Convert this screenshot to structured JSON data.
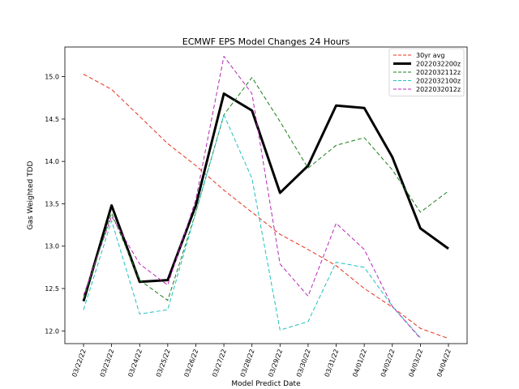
{
  "chart_data": {
    "type": "line",
    "title": "ECMWF EPS Model Changes 24 Hours",
    "xlabel": "Model Predict Date",
    "ylabel": "Gas Weighted TDD",
    "ylim": [
      11.85,
      15.35
    ],
    "yticks": [
      "12.0",
      "12.5",
      "13.0",
      "13.5",
      "14.0",
      "14.5",
      "15.0"
    ],
    "legend_position": "top-right",
    "categories": [
      "03/22/22",
      "03/23/22",
      "03/24/22",
      "03/25/22",
      "03/26/22",
      "03/27/22",
      "03/28/22",
      "03/29/22",
      "03/30/22",
      "03/31/22",
      "04/01/22",
      "04/02/22",
      "04/03/22",
      "04/04/22"
    ],
    "series": [
      {
        "name": "30yr avg",
        "color": "#e8301c",
        "style": "dashed",
        "width": "thin",
        "values": [
          15.03,
          14.85,
          14.53,
          14.21,
          13.95,
          13.66,
          13.4,
          13.14,
          12.96,
          12.77,
          12.5,
          12.28,
          12.03,
          11.91
        ]
      },
      {
        "name": "2022032200z",
        "color": "#000000",
        "style": "solid",
        "width": "thick",
        "values": [
          12.35,
          13.48,
          12.58,
          12.6,
          13.48,
          14.8,
          14.6,
          13.63,
          13.95,
          14.66,
          14.63,
          14.05,
          13.21,
          12.97
        ]
      },
      {
        "name": "2022032112z",
        "color": "#1c7d1c",
        "style": "dashed",
        "width": "thin",
        "values": [
          12.38,
          13.39,
          12.6,
          12.36,
          13.4,
          14.55,
          14.99,
          14.47,
          13.92,
          14.19,
          14.28,
          13.9,
          13.4,
          13.65
        ]
      },
      {
        "name": "2022032100z",
        "color": "#1fbfbf",
        "style": "dashed",
        "width": "thin",
        "values": [
          12.25,
          13.3,
          12.2,
          12.25,
          13.4,
          14.55,
          13.8,
          12.01,
          12.11,
          12.81,
          12.75,
          12.29,
          11.92,
          null
        ]
      },
      {
        "name": "2022032012z",
        "color": "#b52ab5",
        "style": "dashed",
        "width": "thin",
        "values": [
          12.42,
          13.35,
          12.79,
          12.54,
          13.55,
          15.24,
          14.8,
          12.79,
          12.41,
          13.27,
          12.96,
          12.29,
          11.91,
          null
        ]
      }
    ]
  }
}
